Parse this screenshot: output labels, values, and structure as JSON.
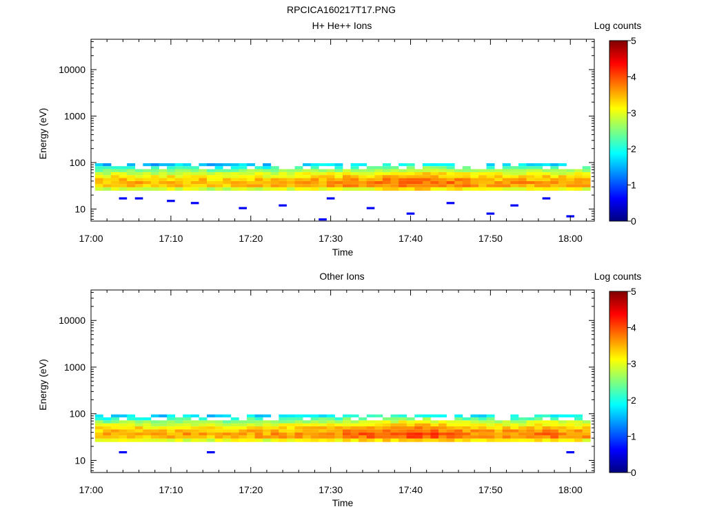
{
  "figure": {
    "title": "RPCICA160217T17.PNG"
  },
  "colorscale": {
    "stops": [
      "#00007f",
      "#0000ff",
      "#007fff",
      "#00ffff",
      "#7fff7f",
      "#ffff00",
      "#ff7f00",
      "#ff0000",
      "#7f0000"
    ]
  },
  "chart_data": [
    {
      "type": "heatmap",
      "title": "H+ He++ Ions",
      "xlabel": "Time",
      "ylabel": "Energy (eV)",
      "x_ticks": [
        "17:00",
        "17:10",
        "17:20",
        "17:30",
        "17:40",
        "17:50",
        "18:00"
      ],
      "xlim": [
        "17:00",
        "18:03"
      ],
      "y_ticks": [
        "10",
        "100",
        "1000",
        "10000"
      ],
      "yscale": "log",
      "ylim": [
        5.5,
        45000
      ],
      "colorbar": {
        "label": "Log counts",
        "ticks": [
          "0",
          "1",
          "2",
          "3",
          "4",
          "5"
        ],
        "range": [
          0,
          5
        ]
      },
      "energy_bins_eV": [
        27,
        32,
        37,
        43,
        50,
        58,
        67,
        78,
        90
      ],
      "band_peak_energy_eV": 37,
      "time_bin_minutes": 1,
      "start_time": "17:01",
      "end_time": "18:03",
      "peak_log_counts_by_minute": [
        3.4,
        3.4,
        3.5,
        3.5,
        3.5,
        3.5,
        3.4,
        3.4,
        3.4,
        3.5,
        3.5,
        3.5,
        3.5,
        3.5,
        3.4,
        3.4,
        3.4,
        3.5,
        3.5,
        3.5,
        3.5,
        3.4,
        3.5,
        3.5,
        3.5,
        3.6,
        3.6,
        3.6,
        3.6,
        3.6,
        3.6,
        3.7,
        3.7,
        3.7,
        3.7,
        3.8,
        3.8,
        3.8,
        3.8,
        3.8,
        3.9,
        3.9,
        3.8,
        3.8,
        3.8,
        3.8,
        3.7,
        3.6,
        3.6,
        3.6,
        3.6,
        3.6,
        3.6,
        3.6,
        3.6,
        3.6,
        3.6,
        3.6,
        3.6,
        3.6,
        3.6,
        3.6
      ],
      "sporadic_low_energy_hits": [
        {
          "time": "17:04",
          "energy_eV": 17
        },
        {
          "time": "17:06",
          "energy_eV": 17
        },
        {
          "time": "17:10",
          "energy_eV": 15
        },
        {
          "time": "17:13",
          "energy_eV": 13.5
        },
        {
          "time": "17:19",
          "energy_eV": 10.5
        },
        {
          "time": "17:24",
          "energy_eV": 12
        },
        {
          "time": "17:29",
          "energy_eV": 6
        },
        {
          "time": "17:30",
          "energy_eV": 17
        },
        {
          "time": "17:35",
          "energy_eV": 10.5
        },
        {
          "time": "17:40",
          "energy_eV": 8
        },
        {
          "time": "17:45",
          "energy_eV": 13.5
        },
        {
          "time": "17:50",
          "energy_eV": 8
        },
        {
          "time": "17:53",
          "energy_eV": 12
        },
        {
          "time": "17:57",
          "energy_eV": 17
        },
        {
          "time": "18:00",
          "energy_eV": 7
        }
      ]
    },
    {
      "type": "heatmap",
      "title": "Other Ions",
      "xlabel": "Time",
      "ylabel": "Energy (eV)",
      "x_ticks": [
        "17:00",
        "17:10",
        "17:20",
        "17:30",
        "17:40",
        "17:50",
        "18:00"
      ],
      "xlim": [
        "17:00",
        "18:03"
      ],
      "y_ticks": [
        "10",
        "100",
        "1000",
        "10000"
      ],
      "yscale": "log",
      "ylim": [
        5.5,
        45000
      ],
      "colorbar": {
        "label": "Log counts",
        "ticks": [
          "0",
          "1",
          "2",
          "3",
          "4",
          "5"
        ],
        "range": [
          0,
          5
        ]
      },
      "energy_bins_eV": [
        27,
        32,
        37,
        43,
        50,
        58,
        67,
        78,
        90
      ],
      "band_peak_energy_eV": 37,
      "time_bin_minutes": 1,
      "start_time": "17:01",
      "end_time": "18:03",
      "peak_log_counts_by_minute": [
        3.5,
        3.5,
        3.6,
        3.6,
        3.6,
        3.6,
        3.5,
        3.5,
        3.5,
        3.6,
        3.6,
        3.6,
        3.6,
        3.6,
        3.5,
        3.5,
        3.5,
        3.6,
        3.6,
        3.6,
        3.6,
        3.5,
        3.6,
        3.6,
        3.6,
        3.7,
        3.7,
        3.7,
        3.7,
        3.7,
        3.7,
        3.8,
        3.8,
        3.9,
        3.9,
        3.9,
        3.9,
        3.9,
        4.0,
        4.0,
        4.0,
        4.0,
        4.0,
        3.9,
        3.9,
        3.9,
        3.8,
        3.7,
        3.7,
        3.7,
        3.7,
        3.7,
        3.7,
        3.7,
        3.8,
        3.8,
        3.8,
        3.8,
        3.7,
        3.7,
        3.7,
        3.7
      ],
      "sporadic_low_energy_hits": [
        {
          "time": "17:04",
          "energy_eV": 15
        },
        {
          "time": "17:15",
          "energy_eV": 15
        },
        {
          "time": "18:00",
          "energy_eV": 15
        }
      ]
    }
  ]
}
